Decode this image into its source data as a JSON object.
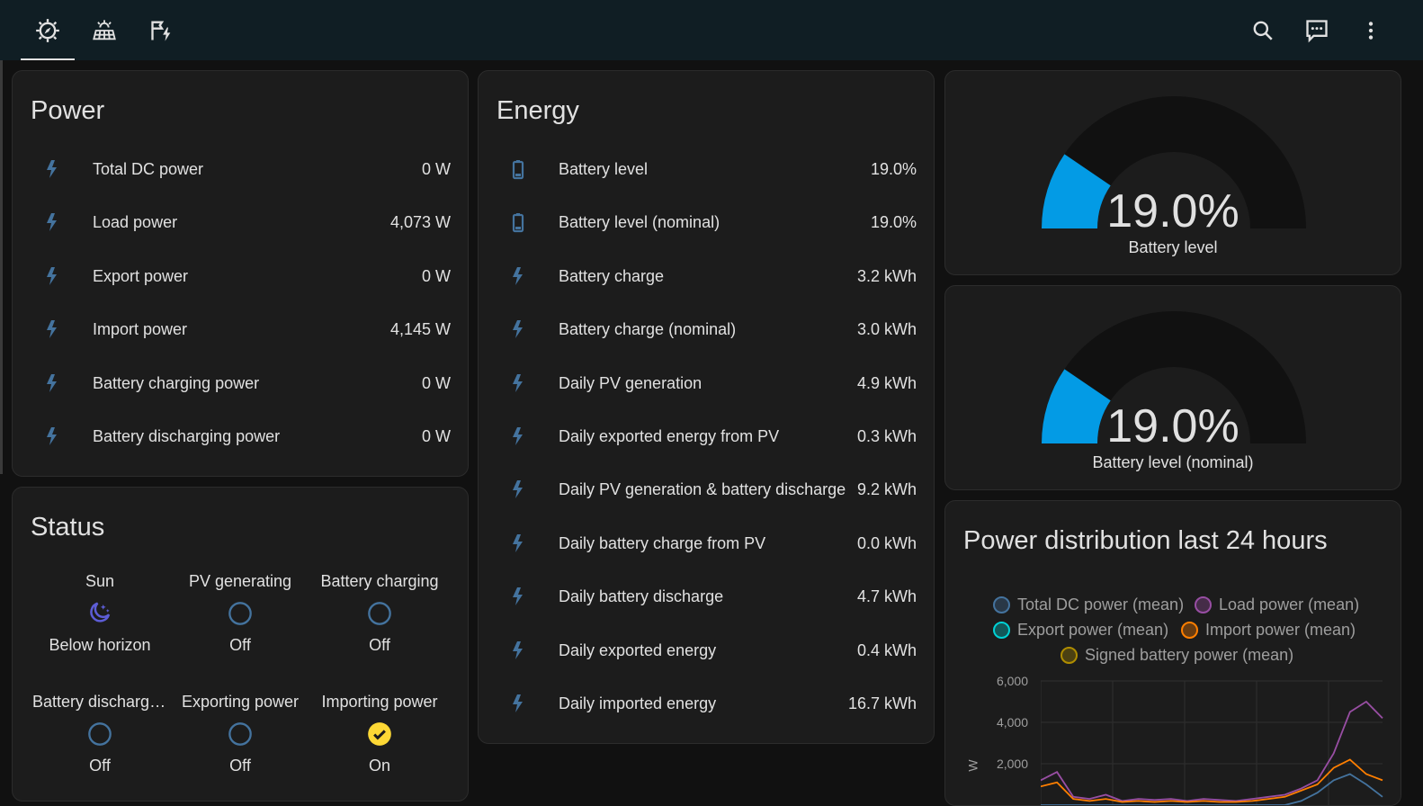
{
  "colors": {
    "accent": "#039be5",
    "icon": "#44739e",
    "bar": "#101e24",
    "check": "#fdd835",
    "moon": "#5d5dd6"
  },
  "power": {
    "title": "Power",
    "rows": [
      {
        "label": "Total DC power",
        "value": "0 W",
        "icon": "lightning-bolt-icon"
      },
      {
        "label": "Load power",
        "value": "4,073 W",
        "icon": "lightning-bolt-icon"
      },
      {
        "label": "Export power",
        "value": "0 W",
        "icon": "lightning-bolt-icon"
      },
      {
        "label": "Import power",
        "value": "4,145 W",
        "icon": "lightning-bolt-icon"
      },
      {
        "label": "Battery charging power",
        "value": "0 W",
        "icon": "lightning-bolt-icon"
      },
      {
        "label": "Battery discharging power",
        "value": "0 W",
        "icon": "lightning-bolt-icon"
      }
    ]
  },
  "energy": {
    "title": "Energy",
    "rows": [
      {
        "label": "Battery level",
        "value": "19.0%",
        "icon": "battery-icon"
      },
      {
        "label": "Battery level (nominal)",
        "value": "19.0%",
        "icon": "battery-icon"
      },
      {
        "label": "Battery charge",
        "value": "3.2 kWh",
        "icon": "lightning-bolt-icon"
      },
      {
        "label": "Battery charge (nominal)",
        "value": "3.0 kWh",
        "icon": "lightning-bolt-icon"
      },
      {
        "label": "Daily PV generation",
        "value": "4.9 kWh",
        "icon": "lightning-bolt-icon"
      },
      {
        "label": "Daily exported energy from PV",
        "value": "0.3 kWh",
        "icon": "lightning-bolt-icon"
      },
      {
        "label": "Daily PV generation & battery discharge",
        "value": "9.2 kWh",
        "icon": "lightning-bolt-icon"
      },
      {
        "label": "Daily battery charge from PV",
        "value": "0.0 kWh",
        "icon": "lightning-bolt-icon"
      },
      {
        "label": "Daily battery discharge",
        "value": "4.7 kWh",
        "icon": "lightning-bolt-icon"
      },
      {
        "label": "Daily exported energy",
        "value": "0.4 kWh",
        "icon": "lightning-bolt-icon"
      },
      {
        "label": "Daily imported energy",
        "value": "16.7 kWh",
        "icon": "lightning-bolt-icon"
      }
    ]
  },
  "status": {
    "title": "Status",
    "items": [
      {
        "name": "Sun",
        "state": "Below horizon",
        "icon": "moon-icon"
      },
      {
        "name": "PV generating",
        "state": "Off",
        "icon": "circle-outline-icon"
      },
      {
        "name": "Battery charging",
        "state": "Off",
        "icon": "circle-outline-icon"
      },
      {
        "name": "Battery discharging",
        "state": "Off",
        "icon": "circle-outline-icon"
      },
      {
        "name": "Exporting power",
        "state": "Off",
        "icon": "circle-outline-icon"
      },
      {
        "name": "Importing power",
        "state": "On",
        "icon": "check-circle-icon"
      }
    ]
  },
  "gauges": [
    {
      "value": "19.0%",
      "level": 19.0,
      "label": "Battery level"
    },
    {
      "value": "19.0%",
      "level": 19.0,
      "label": "Battery level (nominal)"
    }
  ],
  "chart": {
    "title": "Power distribution last 24 hours",
    "ylabel": "W",
    "legend": [
      {
        "name": "Total DC power (mean)",
        "color": "#44739e"
      },
      {
        "name": "Load power (mean)",
        "color": "#984ea3"
      },
      {
        "name": "Export power (mean)",
        "color": "#00d2d5"
      },
      {
        "name": "Import power (mean)",
        "color": "#ff7f00"
      },
      {
        "name": "Signed battery power (mean)",
        "color": "#af8d00"
      }
    ],
    "yticks": [
      "6,000",
      "4,000",
      "2,000"
    ]
  },
  "chart_data": {
    "type": "line",
    "title": "Power distribution last 24 hours",
    "ylabel": "W",
    "ylim": [
      0,
      6000
    ],
    "yticks": [
      2000,
      4000,
      6000
    ],
    "series": [
      {
        "name": "Load power (mean)",
        "values": [
          1200,
          1600,
          400,
          300,
          500,
          200,
          300,
          250,
          300,
          200,
          300,
          250,
          200,
          300,
          400,
          500,
          800,
          1200,
          2500,
          4500,
          5000,
          4200
        ]
      },
      {
        "name": "Import power (mean)",
        "values": [
          900,
          1100,
          300,
          200,
          300,
          150,
          200,
          150,
          200,
          150,
          200,
          150,
          150,
          200,
          300,
          400,
          700,
          1000,
          1800,
          2200,
          1500,
          1200
        ]
      },
      {
        "name": "Total DC power (mean)",
        "values": [
          0,
          0,
          0,
          0,
          0,
          0,
          0,
          0,
          0,
          0,
          0,
          0,
          0,
          0,
          0,
          0,
          200,
          600,
          1200,
          1500,
          1000,
          400
        ]
      }
    ]
  }
}
